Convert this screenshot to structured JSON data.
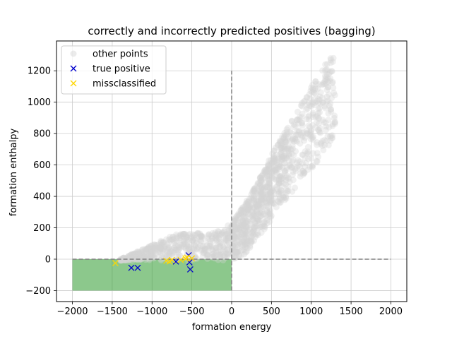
{
  "chart_data": {
    "type": "scatter",
    "title": "correctly and incorrectly predicted positives (bagging)",
    "xlabel": "formation energy",
    "ylabel": "formation enthalpy",
    "xlim": [
      -2200,
      2200
    ],
    "ylim": [
      -270,
      1390
    ],
    "x_ticks": [
      -2000,
      -1500,
      -1000,
      -500,
      0,
      500,
      1000,
      1500,
      2000
    ],
    "x_tick_labels": [
      "−2000",
      "−1500",
      "−1000",
      "−500",
      "0",
      "500",
      "1000",
      "1500",
      "2000"
    ],
    "y_ticks": [
      -200,
      0,
      200,
      400,
      600,
      800,
      1000,
      1200
    ],
    "y_tick_labels": [
      "−200",
      "0",
      "200",
      "400",
      "600",
      "800",
      "1000",
      "1200"
    ],
    "grid": true,
    "legend_position": "top-left",
    "legend": [
      {
        "label": "other points",
        "marker": "circle",
        "color": "#d3d3d3"
      },
      {
        "label": "true positive",
        "marker": "x",
        "color": "#0000cc"
      },
      {
        "label": "missclassified",
        "marker": "x",
        "color": "#ffd700"
      }
    ],
    "region": {
      "x": [
        -2000,
        0
      ],
      "y": [
        -200,
        0
      ],
      "color": "#2e9a2e"
    },
    "reference_lines": [
      {
        "x": [
          -2000,
          2000
        ],
        "y": [
          0,
          0
        ]
      },
      {
        "x": [
          0,
          0
        ],
        "y": [
          -200,
          1200
        ]
      }
    ],
    "series": [
      {
        "name": "true positive",
        "color": "#0000cc",
        "points": [
          [
            -1260,
            -55
          ],
          [
            -1180,
            -55
          ],
          [
            -700,
            -15
          ],
          [
            -540,
            25
          ],
          [
            -530,
            -20
          ],
          [
            -520,
            -65
          ]
        ]
      },
      {
        "name": "missclassified",
        "color": "#ffd700",
        "points": [
          [
            -1460,
            -25
          ],
          [
            -820,
            -10
          ],
          [
            -780,
            -15
          ],
          [
            -750,
            -5
          ],
          [
            -640,
            -5
          ],
          [
            -580,
            5
          ],
          [
            -560,
            10
          ],
          [
            -500,
            5
          ]
        ]
      }
    ],
    "background_cloud": {
      "name": "other points",
      "color": "#d3d3d3",
      "curve": [
        [
          -1400,
          0
        ],
        [
          -1000,
          90
        ],
        [
          -700,
          160
        ],
        [
          -400,
          170
        ],
        [
          -200,
          170
        ],
        [
          0,
          230
        ],
        [
          200,
          380
        ],
        [
          400,
          560
        ],
        [
          600,
          760
        ],
        [
          800,
          930
        ],
        [
          1000,
          1100
        ],
        [
          1200,
          1260
        ],
        [
          1300,
          1310
        ]
      ]
    }
  }
}
